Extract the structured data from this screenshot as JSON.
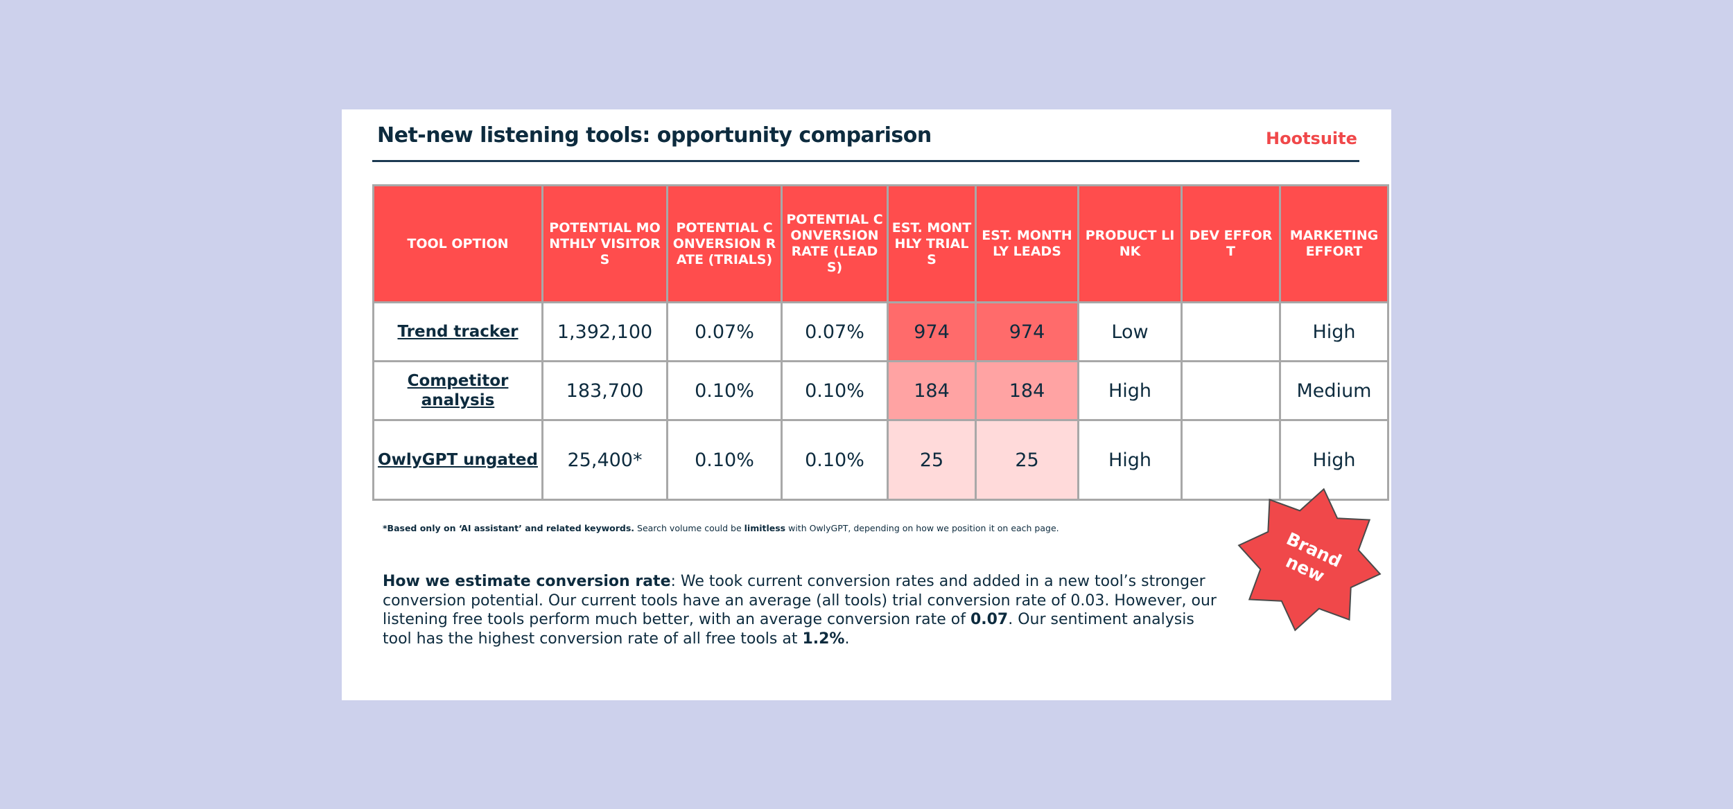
{
  "header": {
    "title": "Net-new listening tools: opportunity comparison",
    "logo": "Hootsuite"
  },
  "table": {
    "columns": [
      "TOOL OPTION",
      "POTENTIAL MONTHLY VISITORS",
      "POTENTIAL CONVERSION RATE (TRIALS)",
      "POTENTIAL CONVERSION RATE (LEADS)",
      "EST. MONTHLY TRIALS",
      "EST. MONTHLY LEADS",
      "PRODUCT LINK",
      "DEV EFFORT",
      "MARKETING EFFORT"
    ],
    "rows": [
      [
        "Trend tracker",
        "1,392,100",
        "0.07%",
        "0.07%",
        "974",
        "974",
        "Low",
        null,
        "High"
      ],
      [
        "Competitor analysis",
        "183,700",
        "0.10%",
        "0.10%",
        "184",
        "184",
        "High",
        null,
        "Medium"
      ],
      [
        "OwlyGPT ungated",
        "25,400*",
        "0.10%",
        "0.10%",
        "25",
        "25",
        "High",
        null,
        "High"
      ]
    ]
  },
  "footnote": [
    {
      "text": "*Based only on ‘AI assistant’ and related keywords.",
      "bold": true
    },
    {
      "text": " Search volume could be ",
      "bold": false
    },
    {
      "text": "limitless",
      "bold": true
    },
    {
      "text": " with OwlyGPT, depending on how we position it on each page.",
      "bold": false
    }
  ],
  "paragraph": [
    {
      "text": "How we estimate conversion rate",
      "bold": true
    },
    {
      "text": ": We took current conversion rates and added in a new tool’s stronger conversion potential. Our current tools have an average (all tools) trial conversion rate of 0.03. However, our listening free tools perform much better, with an average conversion rate of ",
      "bold": false
    },
    {
      "text": "0.07",
      "bold": true
    },
    {
      "text": ". Our sentiment analysis tool has the highest conversion rate of all free tools at ",
      "bold": false
    },
    {
      "text": "1.2%",
      "bold": true
    },
    {
      "text": ".",
      "bold": false
    }
  ],
  "badge": "Brand new"
}
